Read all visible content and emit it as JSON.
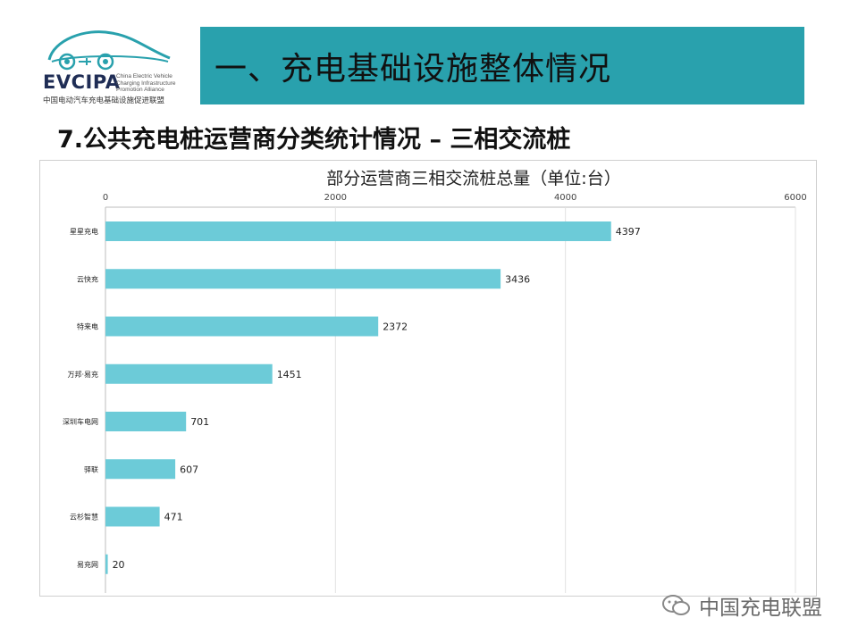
{
  "logo": {
    "brand": "EVCIPA",
    "brand_small": "China Electric Vehicle Charging Infrastructure Promotion Alliance",
    "subtitle": "中国电动汽车充电基础设施促进联盟"
  },
  "banner": {
    "title": "一、充电基础设施整体情况"
  },
  "section": {
    "title": "7.公共充电桩运营商分类统计情况 – 三相交流桩"
  },
  "watermark": {
    "text": "中国充电联盟"
  },
  "colors": {
    "banner": "#29a1ad",
    "bar": "#6ccbd8"
  },
  "chart_data": {
    "type": "bar",
    "orientation": "horizontal",
    "title": "部分运营商三相交流桩总量（单位:台）",
    "categories": [
      "星星充电",
      "云快充",
      "特来电",
      "万邦·易充",
      "深圳车电网",
      "驿联",
      "云杉智慧",
      "易充网"
    ],
    "values": [
      4397,
      3436,
      2372,
      1451,
      701,
      607,
      471,
      20
    ],
    "value_labels": [
      "4397",
      "3436",
      "2372",
      "1451",
      "701",
      "607",
      "471",
      "20"
    ],
    "xlim": [
      0,
      6000
    ],
    "x_ticks": [
      0,
      2000,
      4000,
      6000
    ],
    "x_tick_labels": [
      "0",
      "2000",
      "4000",
      "6000"
    ],
    "axis_position": "top",
    "grid": true
  }
}
